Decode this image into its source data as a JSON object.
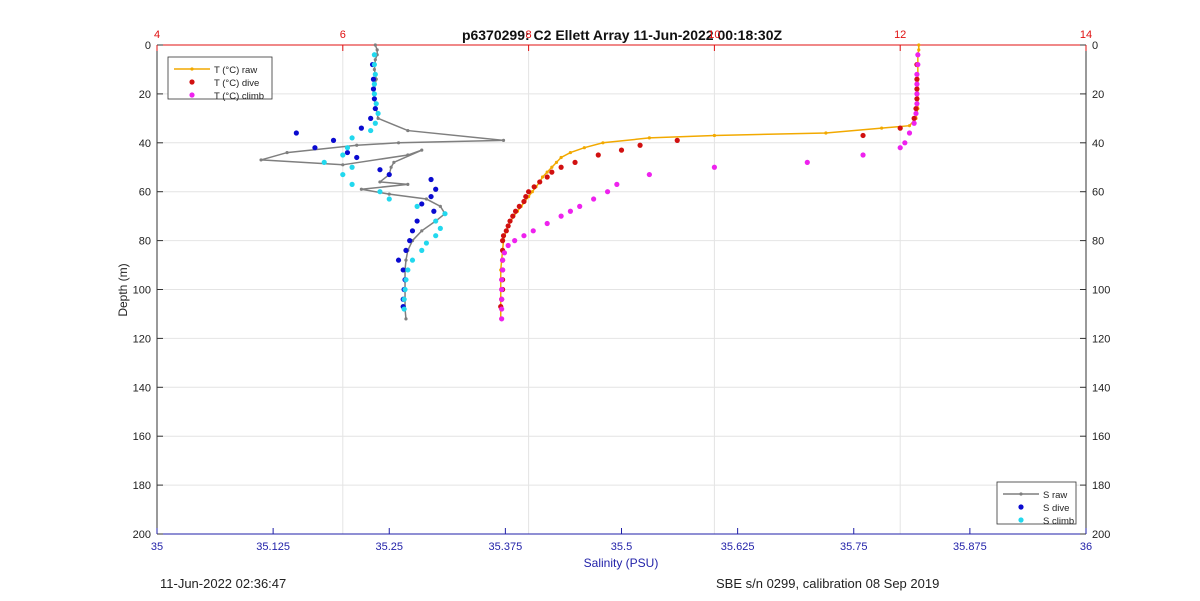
{
  "footer": {
    "timestamp": "11-Jun-2022 02:36:47",
    "calibration": "SBE s/n 0299, calibration 08 Sep 2019"
  },
  "chart_data": {
    "type": "line",
    "title": "p6370299: C2 Ellett Array 11-Jun-2022 00:18:30Z",
    "ylabel": "Depth (m)",
    "xlabel": "Salinity (PSU)",
    "depth_axis": {
      "range": [
        0,
        200
      ],
      "reversed": true,
      "ticks": [
        "0",
        "20",
        "40",
        "60",
        "80",
        "100",
        "120",
        "140",
        "160",
        "180",
        "200"
      ]
    },
    "salinity_axis": {
      "position": "bottom",
      "color": "#1f1fa8",
      "range": [
        35,
        36
      ],
      "ticks": [
        "35",
        "35.125",
        "35.25",
        "35.375",
        "35.5",
        "35.625",
        "35.75",
        "35.875",
        "36"
      ]
    },
    "temperature_axis": {
      "position": "top",
      "color": "#e01010",
      "range": [
        4,
        14
      ],
      "ticks": [
        "4",
        "6",
        "8",
        "10",
        "12",
        "14"
      ]
    },
    "grid": true,
    "legend_temperature": {
      "placement": "top-left",
      "entries": [
        "T (°C) raw",
        "T (°C) dive",
        "T (°C) climb"
      ]
    },
    "legend_salinity": {
      "placement": "bottom-right",
      "entries": [
        "S raw",
        "S dive",
        "S climb"
      ]
    },
    "colors": {
      "t_raw": "#f2a900",
      "t_dive": "#d11010",
      "t_climb": "#ee22ee",
      "s_raw": "#7f7f7f",
      "s_dive": "#0a0ad0",
      "s_climb": "#22d8ee"
    },
    "series": [
      {
        "name": "T (°C) raw",
        "axis": "temperature",
        "style": "line-marker",
        "points": [
          [
            12.2,
            0
          ],
          [
            12.2,
            2
          ],
          [
            12.19,
            4
          ],
          [
            12.19,
            8
          ],
          [
            12.19,
            14
          ],
          [
            12.19,
            20
          ],
          [
            12.19,
            26
          ],
          [
            12.17,
            30
          ],
          [
            12.1,
            33
          ],
          [
            11.8,
            34
          ],
          [
            11.2,
            36
          ],
          [
            10.0,
            37
          ],
          [
            9.3,
            38
          ],
          [
            8.8,
            40
          ],
          [
            8.6,
            42
          ],
          [
            8.45,
            44
          ],
          [
            8.35,
            46
          ],
          [
            8.3,
            48
          ],
          [
            8.25,
            50
          ],
          [
            8.2,
            52
          ],
          [
            8.15,
            54
          ],
          [
            8.12,
            56
          ],
          [
            8.08,
            58
          ],
          [
            8.04,
            60
          ],
          [
            8.0,
            62
          ],
          [
            7.96,
            64
          ],
          [
            7.92,
            66
          ],
          [
            7.88,
            68
          ],
          [
            7.84,
            70
          ],
          [
            7.81,
            72
          ],
          [
            7.78,
            74
          ],
          [
            7.76,
            76
          ],
          [
            7.74,
            78
          ],
          [
            7.73,
            80
          ],
          [
            7.72,
            84
          ],
          [
            7.71,
            88
          ],
          [
            7.7,
            92
          ],
          [
            7.7,
            96
          ],
          [
            7.7,
            100
          ],
          [
            7.7,
            104
          ],
          [
            7.7,
            108
          ],
          [
            7.7,
            112
          ]
        ]
      },
      {
        "name": "T (°C) dive",
        "axis": "temperature",
        "style": "markers",
        "points": [
          [
            12.18,
            8
          ],
          [
            12.18,
            14
          ],
          [
            12.18,
            18
          ],
          [
            12.18,
            22
          ],
          [
            12.17,
            26
          ],
          [
            12.15,
            30
          ],
          [
            12.0,
            34
          ],
          [
            11.6,
            37
          ],
          [
            9.6,
            39
          ],
          [
            9.2,
            41
          ],
          [
            9.0,
            43
          ],
          [
            8.75,
            45
          ],
          [
            8.5,
            48
          ],
          [
            8.35,
            50
          ],
          [
            8.25,
            52
          ],
          [
            8.2,
            54
          ],
          [
            8.12,
            56
          ],
          [
            8.06,
            58
          ],
          [
            8.0,
            60
          ],
          [
            7.97,
            62
          ],
          [
            7.95,
            64
          ],
          [
            7.9,
            66
          ],
          [
            7.86,
            68
          ],
          [
            7.83,
            70
          ],
          [
            7.8,
            72
          ],
          [
            7.78,
            74
          ],
          [
            7.76,
            76
          ],
          [
            7.73,
            78
          ],
          [
            7.72,
            80
          ],
          [
            7.72,
            84
          ],
          [
            7.72,
            88
          ],
          [
            7.72,
            92
          ],
          [
            7.72,
            96
          ],
          [
            7.72,
            100
          ],
          [
            7.71,
            104
          ],
          [
            7.7,
            107
          ]
        ]
      },
      {
        "name": "T (°C) climb",
        "axis": "temperature",
        "style": "markers",
        "points": [
          [
            12.19,
            4
          ],
          [
            12.19,
            8
          ],
          [
            12.18,
            12
          ],
          [
            12.18,
            16
          ],
          [
            12.18,
            20
          ],
          [
            12.18,
            24
          ],
          [
            12.17,
            28
          ],
          [
            12.15,
            32
          ],
          [
            12.1,
            36
          ],
          [
            12.05,
            40
          ],
          [
            12.0,
            42
          ],
          [
            11.6,
            45
          ],
          [
            11.0,
            48
          ],
          [
            10.0,
            50
          ],
          [
            9.3,
            53
          ],
          [
            8.95,
            57
          ],
          [
            8.85,
            60
          ],
          [
            8.7,
            63
          ],
          [
            8.55,
            66
          ],
          [
            8.45,
            68
          ],
          [
            8.35,
            70
          ],
          [
            8.2,
            73
          ],
          [
            8.05,
            76
          ],
          [
            7.95,
            78
          ],
          [
            7.85,
            80
          ],
          [
            7.78,
            82
          ],
          [
            7.74,
            85
          ],
          [
            7.72,
            88
          ],
          [
            7.72,
            92
          ],
          [
            7.71,
            96
          ],
          [
            7.71,
            100
          ],
          [
            7.71,
            104
          ],
          [
            7.71,
            108
          ],
          [
            7.71,
            112
          ]
        ]
      },
      {
        "name": "S raw",
        "axis": "salinity",
        "style": "line-marker",
        "points": [
          [
            35.235,
            0
          ],
          [
            35.237,
            2
          ],
          [
            35.237,
            4
          ],
          [
            35.235,
            6
          ],
          [
            35.234,
            10
          ],
          [
            35.236,
            14
          ],
          [
            35.234,
            18
          ],
          [
            35.234,
            22
          ],
          [
            35.236,
            26
          ],
          [
            35.238,
            30
          ],
          [
            35.27,
            35
          ],
          [
            35.373,
            39
          ],
          [
            35.26,
            40
          ],
          [
            35.215,
            41
          ],
          [
            35.14,
            44
          ],
          [
            35.112,
            47
          ],
          [
            35.2,
            49
          ],
          [
            35.27,
            45
          ],
          [
            35.285,
            43
          ],
          [
            35.255,
            48
          ],
          [
            35.252,
            50
          ],
          [
            35.25,
            53
          ],
          [
            35.24,
            56
          ],
          [
            35.27,
            57
          ],
          [
            35.22,
            59
          ],
          [
            35.25,
            61
          ],
          [
            35.29,
            63
          ],
          [
            35.305,
            66
          ],
          [
            35.31,
            69
          ],
          [
            35.3,
            72
          ],
          [
            35.285,
            76
          ],
          [
            35.275,
            80
          ],
          [
            35.27,
            84
          ],
          [
            35.268,
            88
          ],
          [
            35.267,
            92
          ],
          [
            35.267,
            96
          ],
          [
            35.267,
            100
          ],
          [
            35.267,
            104
          ],
          [
            35.267,
            108
          ],
          [
            35.268,
            112
          ]
        ]
      },
      {
        "name": "S dive",
        "axis": "salinity",
        "style": "markers",
        "points": [
          [
            35.232,
            8
          ],
          [
            35.233,
            14
          ],
          [
            35.233,
            18
          ],
          [
            35.234,
            22
          ],
          [
            35.235,
            26
          ],
          [
            35.23,
            30
          ],
          [
            35.22,
            34
          ],
          [
            35.15,
            36
          ],
          [
            35.19,
            39
          ],
          [
            35.17,
            42
          ],
          [
            35.205,
            44
          ],
          [
            35.215,
            46
          ],
          [
            35.24,
            51
          ],
          [
            35.25,
            53
          ],
          [
            35.295,
            55
          ],
          [
            35.3,
            59
          ],
          [
            35.295,
            62
          ],
          [
            35.285,
            65
          ],
          [
            35.298,
            68
          ],
          [
            35.28,
            72
          ],
          [
            35.275,
            76
          ],
          [
            35.272,
            80
          ],
          [
            35.268,
            84
          ],
          [
            35.26,
            88
          ],
          [
            35.265,
            92
          ],
          [
            35.267,
            96
          ],
          [
            35.266,
            100
          ],
          [
            35.265,
            104
          ],
          [
            35.265,
            107
          ]
        ]
      },
      {
        "name": "S climb",
        "axis": "salinity",
        "style": "markers",
        "points": [
          [
            35.234,
            4
          ],
          [
            35.234,
            8
          ],
          [
            35.235,
            12
          ],
          [
            35.234,
            16
          ],
          [
            35.234,
            20
          ],
          [
            35.236,
            24
          ],
          [
            35.238,
            28
          ],
          [
            35.235,
            32
          ],
          [
            35.23,
            35
          ],
          [
            35.21,
            38
          ],
          [
            35.205,
            42
          ],
          [
            35.2,
            45
          ],
          [
            35.18,
            48
          ],
          [
            35.21,
            50
          ],
          [
            35.2,
            53
          ],
          [
            35.21,
            57
          ],
          [
            35.24,
            60
          ],
          [
            35.25,
            63
          ],
          [
            35.28,
            66
          ],
          [
            35.31,
            69
          ],
          [
            35.3,
            72
          ],
          [
            35.305,
            75
          ],
          [
            35.3,
            78
          ],
          [
            35.29,
            81
          ],
          [
            35.285,
            84
          ],
          [
            35.275,
            88
          ],
          [
            35.27,
            92
          ],
          [
            35.268,
            96
          ],
          [
            35.267,
            100
          ],
          [
            35.266,
            104
          ],
          [
            35.266,
            108
          ]
        ]
      }
    ]
  }
}
